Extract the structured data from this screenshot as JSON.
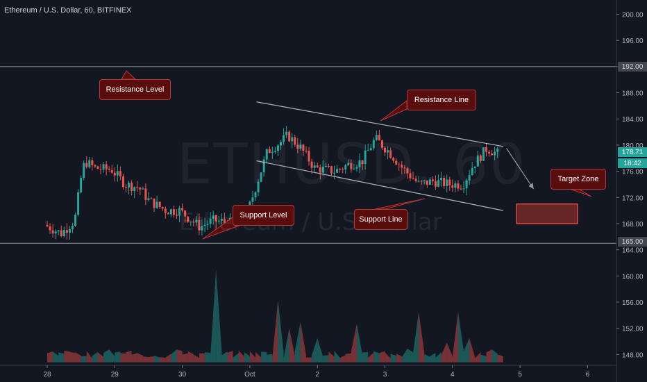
{
  "header": {
    "title": "Ethereum / U.S. Dollar, 60, BITFINEX"
  },
  "watermark": {
    "symbol": "ETHUSD, 60",
    "name": "Ethereum / U.S. Dollar"
  },
  "annotations": {
    "resistance_level": "Resistance Level",
    "resistance_line": "Resistance Line",
    "support_level": "Support Level",
    "support_line": "Support Line",
    "target_zone": "Target Zone"
  },
  "price_tags": {
    "resistance_level": "192.00",
    "current_price": "178.71",
    "countdown": "18:42",
    "support_level": "165.00"
  },
  "colors": {
    "background": "#131722",
    "bull": "#26a69a",
    "bear": "#ef5350",
    "line": "#b2b5be",
    "callout": "#5a0d0d"
  },
  "chart_data": {
    "type": "candlestick",
    "x_ticks": [
      "28",
      "29",
      "30",
      "Oct",
      "2",
      "3",
      "4",
      "5",
      "6"
    ],
    "y_ticks": [
      148,
      152,
      156,
      160,
      164,
      168,
      172,
      176,
      180,
      184,
      188,
      192,
      196,
      200
    ],
    "ylim": [
      146.5,
      201.5
    ],
    "horizontal_levels": [
      192.0,
      165.0
    ],
    "current_price": 178.71,
    "price_path": [
      [
        0,
        167.8
      ],
      [
        0.1,
        167.3
      ],
      [
        0.25,
        166.5
      ],
      [
        0.45,
        168.5
      ],
      [
        0.55,
        175.5
      ],
      [
        0.6,
        177.5
      ],
      [
        0.75,
        176.5
      ],
      [
        1.0,
        176.2
      ],
      [
        1.2,
        174.0
      ],
      [
        1.4,
        173.5
      ],
      [
        1.55,
        171.5
      ],
      [
        1.8,
        170.0
      ],
      [
        2.0,
        170.0
      ],
      [
        2.3,
        167.5
      ],
      [
        2.5,
        168.5
      ],
      [
        2.8,
        168.0
      ],
      [
        3.0,
        169.5
      ],
      [
        3.3,
        179.0
      ],
      [
        3.5,
        180.5
      ],
      [
        3.6,
        181.5
      ],
      [
        3.8,
        179.5
      ],
      [
        4.0,
        176.5
      ],
      [
        4.3,
        176.0
      ],
      [
        4.5,
        177.0
      ],
      [
        4.7,
        177.5
      ],
      [
        4.9,
        181.0
      ],
      [
        5.1,
        179.0
      ],
      [
        5.3,
        176.5
      ],
      [
        5.55,
        174.0
      ],
      [
        5.75,
        174.5
      ],
      [
        6.0,
        174.0
      ],
      [
        6.2,
        174.0
      ],
      [
        6.35,
        177.0
      ],
      [
        6.55,
        179.5
      ],
      [
        6.7,
        178.71
      ]
    ],
    "channel": {
      "upper": [
        [
          3.1,
          186.6
        ],
        [
          6.75,
          179.8
        ]
      ],
      "lower": [
        [
          3.1,
          177.6
        ],
        [
          6.75,
          170.0
        ]
      ]
    },
    "target_zone": {
      "x": [
        6.95,
        7.85
      ],
      "y": [
        168.0,
        171.0
      ]
    },
    "volume": {
      "baseline": 146.8,
      "spikes": [
        [
          0.05,
          150.5
        ],
        [
          0.35,
          149.0
        ],
        [
          0.9,
          149.5
        ],
        [
          1.3,
          150.0
        ],
        [
          1.9,
          149.5
        ],
        [
          2.5,
          161.0
        ],
        [
          2.8,
          150.0
        ],
        [
          3.4,
          160.0
        ],
        [
          3.6,
          154.0
        ],
        [
          3.75,
          153.0
        ],
        [
          4.0,
          150.5
        ],
        [
          4.6,
          155.0
        ],
        [
          4.8,
          149.0
        ],
        [
          5.3,
          151.5
        ],
        [
          5.5,
          154.5
        ],
        [
          5.9,
          151.0
        ],
        [
          6.1,
          157.5
        ],
        [
          6.25,
          150.5
        ],
        [
          6.6,
          149.5
        ],
        [
          6.8,
          148.5
        ]
      ]
    }
  }
}
